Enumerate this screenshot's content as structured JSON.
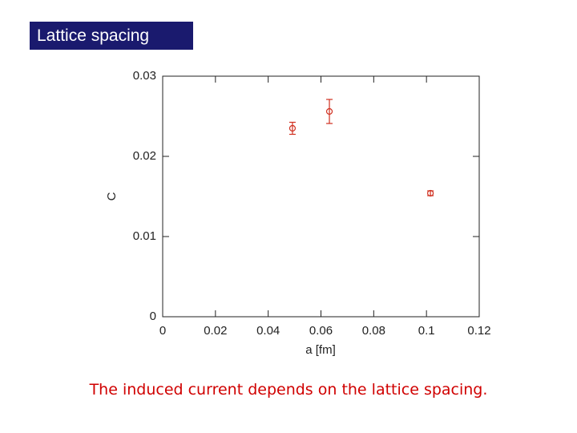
{
  "header": {
    "title": "Lattice spacing"
  },
  "chart_data": {
    "type": "scatter",
    "x_label": "a  [fm]",
    "y_label": "C",
    "series": [
      {
        "color": "#d03020",
        "x": [
          0.0492,
          0.0632,
          0.1015
        ],
        "values": [
          0.0235,
          0.0256,
          0.0154
        ],
        "errors": [
          0.00075,
          0.0015,
          0.0003
        ]
      }
    ],
    "xlim": [
      0,
      0.12
    ],
    "xticks": [
      0,
      0.02,
      0.04,
      0.06,
      0.08,
      0.1,
      0.12
    ],
    "ylim": [
      0,
      0.03
    ],
    "yticks": [
      0,
      0.01,
      0.02,
      0.03
    ]
  },
  "caption": "The induced current depends on the lattice spacing."
}
